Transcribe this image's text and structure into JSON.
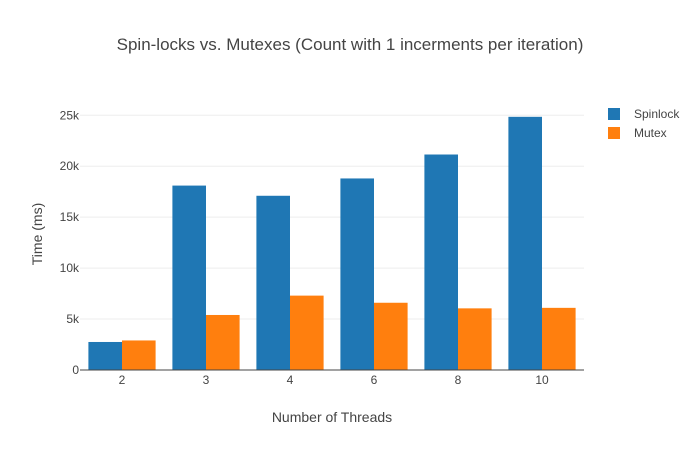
{
  "chart_data": {
    "type": "bar",
    "title": "Spin-locks vs. Mutexes (Count with 1 incerments per iteration)",
    "xlabel": "Number of Threads",
    "ylabel": "Time (ms)",
    "categories": [
      "2",
      "3",
      "4",
      "6",
      "8",
      "10"
    ],
    "series": [
      {
        "name": "Spinlock",
        "color": "#1f77b4",
        "values": [
          2750,
          18100,
          17100,
          18800,
          21150,
          24850
        ]
      },
      {
        "name": "Mutex",
        "color": "#ff7f0e",
        "values": [
          2900,
          5400,
          7300,
          6600,
          6050,
          6100
        ]
      }
    ],
    "ylim": [
      0,
      26500
    ],
    "yticks": [
      0,
      5000,
      10000,
      15000,
      20000,
      25000
    ],
    "ytick_labels": [
      "0",
      "5k",
      "10k",
      "15k",
      "20k",
      "25k"
    ],
    "grid": true,
    "legend": "top-right"
  }
}
